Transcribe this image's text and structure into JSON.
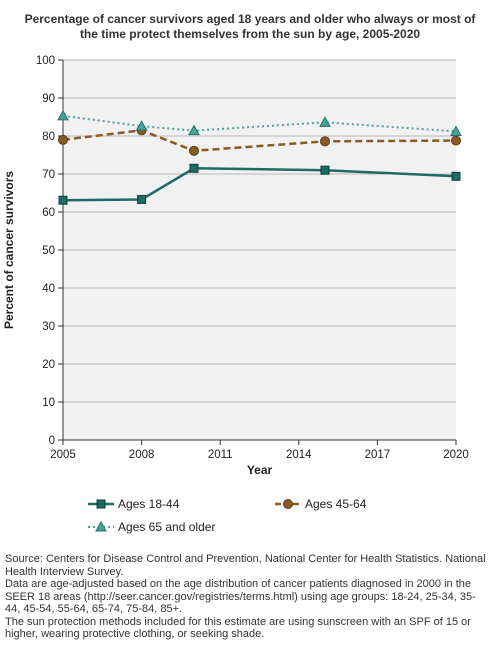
{
  "chart_data": {
    "type": "line",
    "title": "Percentage of cancer survivors aged 18 years and older who always or most of the time protect themselves from the sun by age, 2005-2020",
    "xlabel": "Year",
    "ylabel": "Percent of cancer survivors",
    "xlim": [
      2005,
      2020
    ],
    "ylim": [
      0,
      100
    ],
    "xticks": [
      "2005",
      "2008",
      "2011",
      "2014",
      "2017",
      "2020"
    ],
    "yticks": [
      "0",
      "10",
      "20",
      "30",
      "40",
      "50",
      "60",
      "70",
      "80",
      "90",
      "100"
    ],
    "grid": true,
    "legend_position": "bottom",
    "series": [
      {
        "name": "Ages 18-44",
        "color": "#1d6b62",
        "style": "solid",
        "marker": "square",
        "x": [
          2005,
          2008,
          2010,
          2015,
          2020
        ],
        "y": [
          63.1,
          63.3,
          71.5,
          71.0,
          69.4
        ]
      },
      {
        "name": "Ages 45-64",
        "color": "#8a5a24",
        "style": "dashed",
        "marker": "circle",
        "x": [
          2005,
          2008,
          2010,
          2015,
          2020
        ],
        "y": [
          79.0,
          81.5,
          76.1,
          78.6,
          78.8
        ]
      },
      {
        "name": "Ages 65 and older",
        "color": "#4aa39a",
        "style": "dotted",
        "marker": "triangle",
        "x": [
          2005,
          2008,
          2010,
          2015,
          2020
        ],
        "y": [
          85.3,
          82.6,
          81.4,
          83.6,
          81.2
        ]
      }
    ]
  },
  "source": {
    "line1": "Source: Centers for Disease Control and Prevention, National Center for Health Statistics. National Health Interview Survey.",
    "line2": "Data are age-adjusted based on the age distribution of cancer patients diagnosed in 2000 in the SEER 18 areas (http://seer.cancer.gov/registries/terms.html) using age groups: 18-24, 25-34, 35-44, 45-54, 55-64, 65-74, 75-84, 85+.",
    "line3": "The sun protection methods included for this estimate are using sunscreen with an SPF of 15 or higher, wearing protective clothing, or seeking shade."
  }
}
